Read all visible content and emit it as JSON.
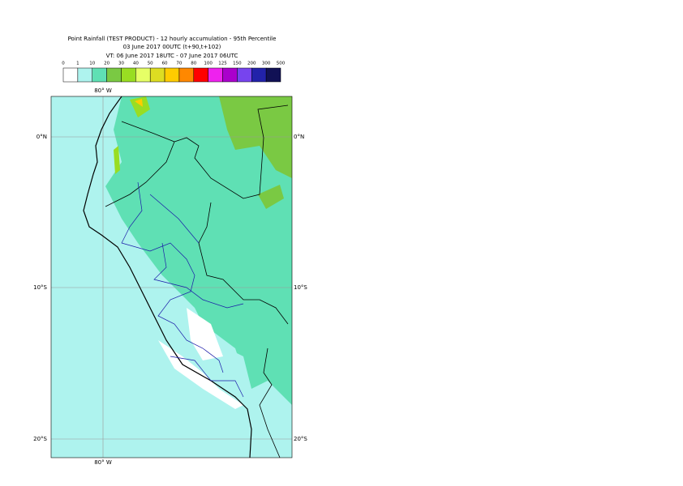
{
  "header": {
    "lines": [
      "Point Rainfall (TEST PRODUCT) - 12 hourly accumulation - 95th Percentile",
      "03 June 2017 00UTC (t+90,t+102)",
      "VT: 06 June 2017 18UTC - 07 June 2017 06UTC"
    ]
  },
  "legend": {
    "thresholds": [
      0,
      1,
      10,
      20,
      30,
      40,
      50,
      60,
      70,
      80,
      100,
      125,
      150,
      200,
      300,
      500
    ],
    "colors": [
      "#ffffff",
      "#aef3ee",
      "#5fe0b4",
      "#7ac943",
      "#99dd22",
      "#e6ff66",
      "#dddd22",
      "#ffcc00",
      "#ff8800",
      "#ff0000",
      "#ee22ee",
      "#aa00cc",
      "#7744ee",
      "#2222aa",
      "#111155"
    ]
  },
  "map": {
    "lon_label": "80° W",
    "lat_labels": [
      "0°N",
      "10°S",
      "20°S"
    ]
  }
}
